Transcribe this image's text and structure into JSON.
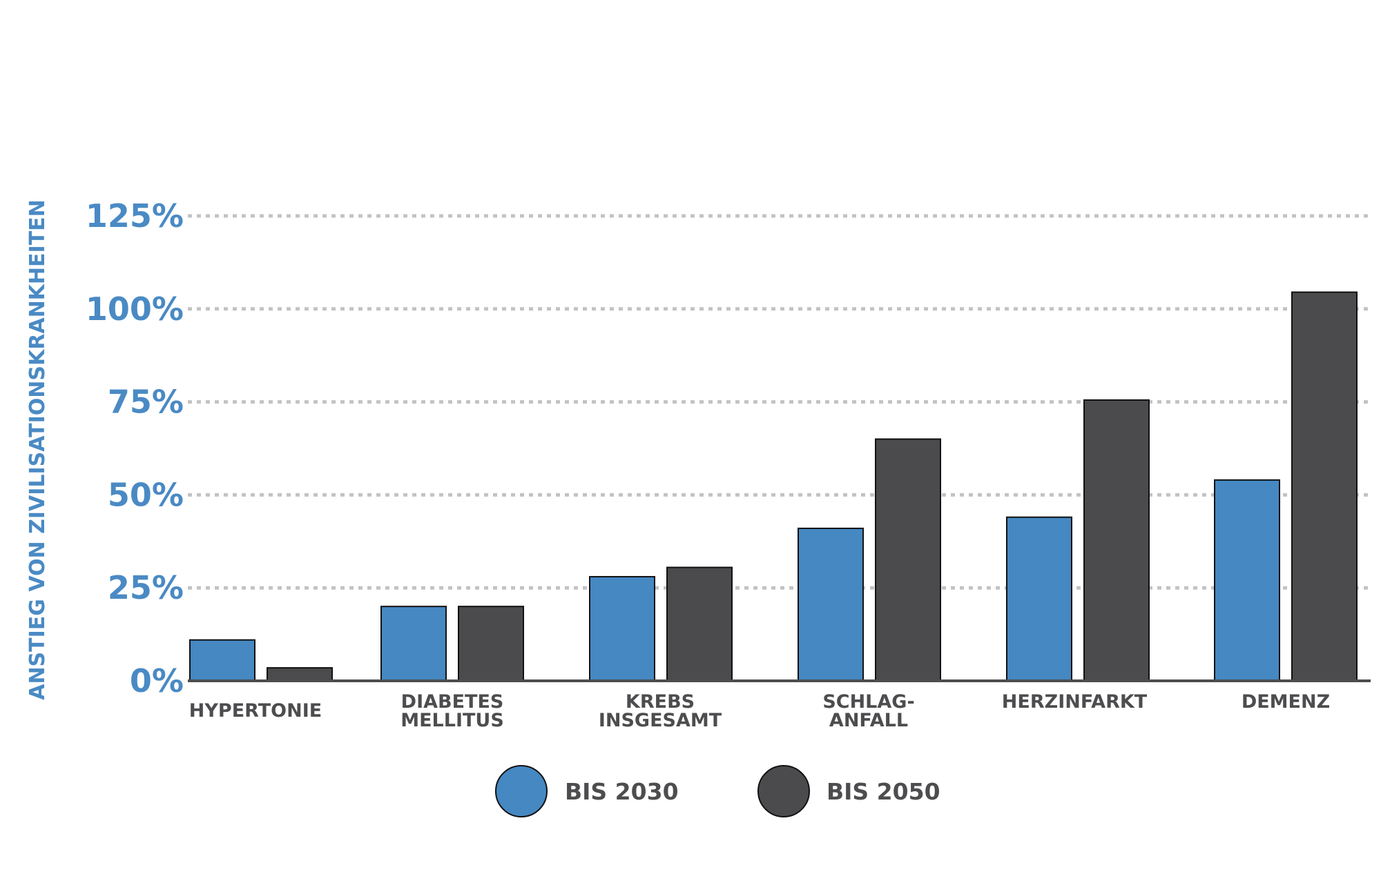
{
  "chart_data": {
    "type": "bar",
    "title": "",
    "xlabel": "",
    "ylabel": "ANSTIEG VON ZIVILISATIONSKRANKHEITEN",
    "ylim": [
      0,
      125
    ],
    "yticks": [
      0,
      25,
      50,
      75,
      100,
      125
    ],
    "ytick_labels": [
      "0%",
      "25%",
      "50%",
      "75%",
      "100%",
      "125%"
    ],
    "grid": true,
    "legend_position": "bottom",
    "categories": [
      [
        "HYPERTONIE"
      ],
      [
        "DIABETES",
        "MELLITUS"
      ],
      [
        "KREBS",
        "INSGESAMT"
      ],
      [
        "SCHLAG-",
        "ANFALL"
      ],
      [
        "HERZINFARKT"
      ],
      [
        "DEMENZ"
      ]
    ],
    "series": [
      {
        "name": "BIS 2030",
        "color": "#4588c2",
        "values": [
          11,
          20,
          28,
          41,
          44,
          54
        ]
      },
      {
        "name": "BIS 2050",
        "color": "#4b4b4d",
        "values": [
          3.5,
          20,
          30.5,
          65,
          75.5,
          104.5
        ]
      }
    ],
    "colors": {
      "axis_text": "#4a8ac4",
      "category_text": "#4d4d4f",
      "grid": "#c3c3c3",
      "baseline": "#4d4d4f",
      "bar_outline": "#111111"
    }
  }
}
